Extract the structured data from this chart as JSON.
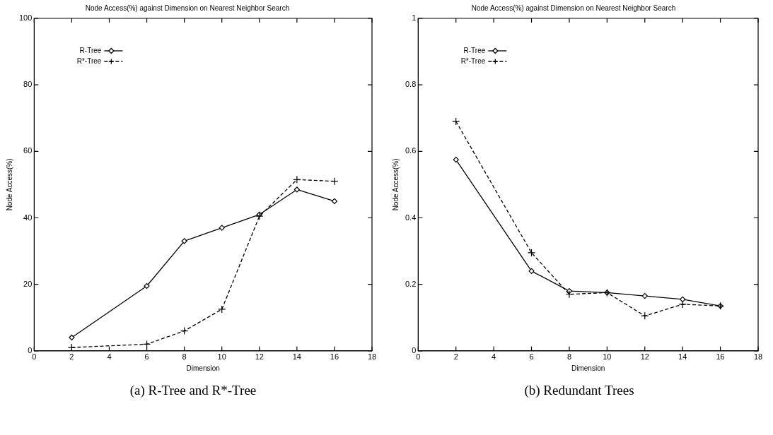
{
  "chart_data": [
    {
      "type": "line",
      "title": "Node Access(%) against Dimension on Nearest Neighbor Search",
      "xlabel": "Dimension",
      "ylabel": "Node Access(%)",
      "x": [
        2,
        6,
        8,
        10,
        12,
        14,
        16
      ],
      "series": [
        {
          "name": "R-Tree",
          "color": "#000000",
          "marker": "diamond",
          "line_style": "solid",
          "values": [
            4,
            19.5,
            33,
            37,
            41,
            48.5,
            45
          ]
        },
        {
          "name": "R*-Tree",
          "color": "#000000",
          "marker": "cross",
          "line_style": "dashed",
          "values": [
            1,
            2,
            6,
            12.5,
            40.5,
            51.5,
            51
          ]
        }
      ],
      "xlim": [
        0,
        18
      ],
      "xticks": [
        0,
        2,
        4,
        6,
        8,
        10,
        12,
        14,
        16,
        18
      ],
      "ylim": [
        0,
        100
      ],
      "yticks": [
        0,
        20,
        40,
        60,
        80,
        100
      ],
      "grid": false,
      "legend": "top left",
      "annotations": [
        "(a) R-Tree and R*-Tree"
      ]
    },
    {
      "type": "line",
      "title": "Node Access(%) against Dimension on Nearest Neighbor Search",
      "xlabel": "Dimension",
      "ylabel": "Node Access(%)",
      "x": [
        2,
        6,
        8,
        10,
        12,
        14,
        16
      ],
      "series": [
        {
          "name": "R-Tree",
          "color": "#000000",
          "marker": "diamond",
          "line_style": "solid",
          "values": [
            0.575,
            0.24,
            0.18,
            0.175,
            0.165,
            0.155,
            0.135
          ]
        },
        {
          "name": "R*-Tree",
          "color": "#000000",
          "marker": "cross",
          "line_style": "dashed",
          "values": [
            0.69,
            0.295,
            0.17,
            0.175,
            0.105,
            0.14,
            0.135
          ]
        }
      ],
      "xlim": [
        0,
        18
      ],
      "xticks": [
        0,
        2,
        4,
        6,
        8,
        10,
        12,
        14,
        16,
        18
      ],
      "ylim": [
        0,
        1
      ],
      "yticks": [
        0,
        0.2,
        0.4,
        0.6,
        0.8,
        1
      ],
      "grid": false,
      "legend": "top left",
      "annotations": [
        "(b) Redundant Trees"
      ]
    }
  ]
}
